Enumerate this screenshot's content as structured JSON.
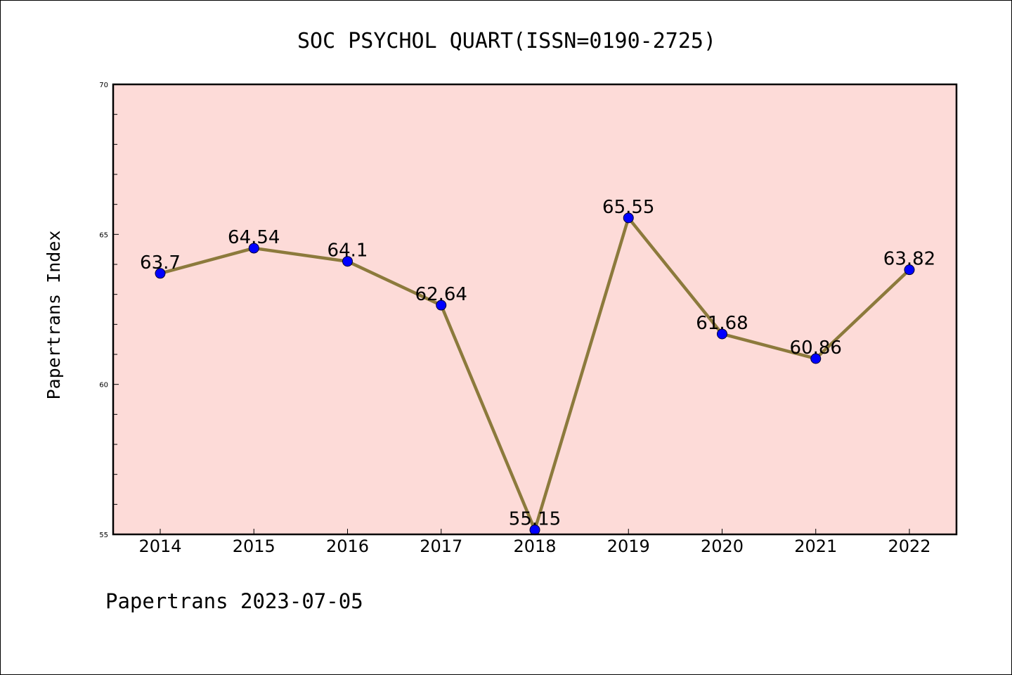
{
  "chart_data": {
    "type": "line",
    "title": "SOC PSYCHOL QUART(ISSN=0190-2725)",
    "xlabel": "",
    "ylabel": "Papertrans Index",
    "categories": [
      "2014",
      "2015",
      "2016",
      "2017",
      "2018",
      "2019",
      "2020",
      "2021",
      "2022"
    ],
    "series": [
      {
        "values": [
          63.7,
          64.54,
          64.1,
          62.64,
          55.15,
          65.55,
          61.68,
          60.86,
          63.82
        ]
      }
    ],
    "data_labels": [
      "63.7",
      "64.54",
      "64.1",
      "62.64",
      "55.15",
      "65.55",
      "61.68",
      "60.86",
      "63.82"
    ],
    "ylim": [
      55,
      70
    ],
    "yticks": [
      55,
      60,
      65,
      70
    ],
    "grid": false,
    "legend": "none",
    "colors": {
      "plot_background": "#fddbd8",
      "line": "#8c7a3c",
      "marker": "#0000ff"
    }
  },
  "footer": "Papertrans 2023-07-05"
}
